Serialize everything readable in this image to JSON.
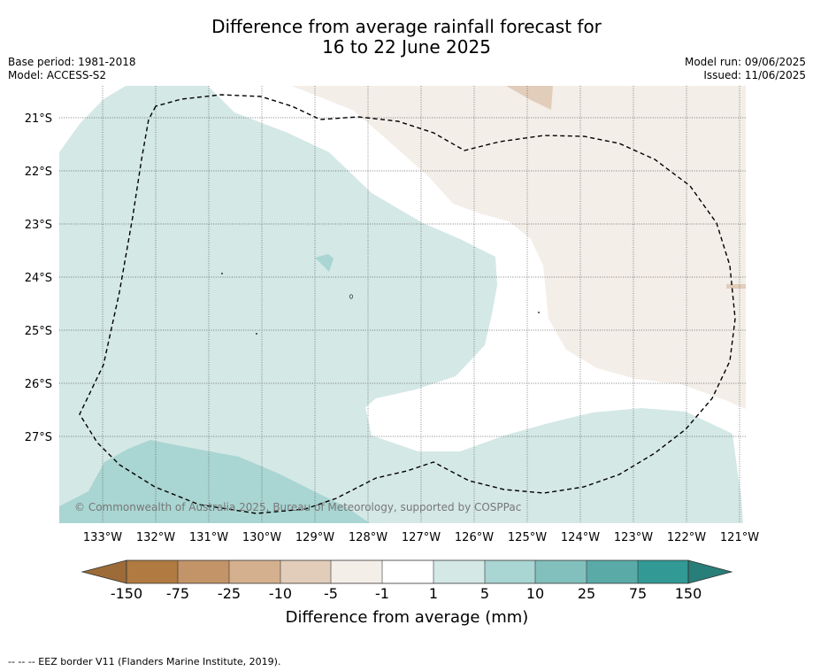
{
  "header": {
    "title_line1": "Difference from average rainfall forecast for",
    "title_line2": "16 to 22 June 2025",
    "base_period": "Base period: 1981-2018",
    "model": "Model: ACCESS-S2",
    "model_run": "Model run: 09/06/2025",
    "issued": "Issued: 11/06/2025"
  },
  "map": {
    "copyright": "© Commonwealth of Australia 2025, Bureau of Meteorology, supported by COSPPac",
    "lat_labels": [
      "21°S",
      "22°S",
      "23°S",
      "24°S",
      "25°S",
      "26°S",
      "27°S"
    ],
    "lon_labels": [
      "133°W",
      "132°W",
      "131°W",
      "130°W",
      "129°W",
      "128°W",
      "127°W",
      "126°W",
      "125°W",
      "124°W",
      "123°W",
      "122°W",
      "121°W"
    ],
    "colors": {
      "light_teal": "#d4e8e6",
      "mid_teal": "#a9d5d2",
      "light_tan": "#f4eee8",
      "tan": "#e2cdbb",
      "gridline": "#555555"
    }
  },
  "legend": {
    "tick_labels": [
      "-150",
      "-75",
      "-25",
      "-10",
      "-5",
      "-1",
      "1",
      "5",
      "10",
      "25",
      "75",
      "150"
    ],
    "colors": [
      "#9c6b38",
      "#b07a40",
      "#c29467",
      "#d4b08f",
      "#e2cdbb",
      "#f4eee8",
      "#ffffff",
      "#d4e8e6",
      "#a9d5d2",
      "#82c0bd",
      "#5aaba8",
      "#329994",
      "#287e79"
    ],
    "label": "Difference from average (mm)"
  },
  "footer": {
    "eez_note": "--  --  -- EEZ border V11 (Flanders Marine Institute, 2019)."
  }
}
